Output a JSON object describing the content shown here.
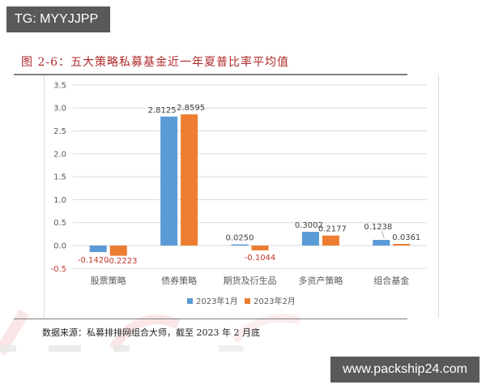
{
  "watermarks": {
    "top": "TG: MYYJJPP",
    "bottom": "www.packship24.com"
  },
  "figure": {
    "title": "图 2-6：五大策略私募基金近一年夏普比率平均值",
    "source": "数据来源：私募排排网组合大师，截至 2023 年 2 月底"
  },
  "colors": {
    "series1": "#5b9bd5",
    "series2": "#ed7d31",
    "title": "#b02a2a",
    "negative_label": "#c0392b",
    "gridline": "#d9d9d9"
  },
  "chart_data": {
    "type": "bar",
    "title": "五大策略私募基金近一年夏普比率平均值",
    "xlabel": "",
    "ylabel": "",
    "categories": [
      "股票策略",
      "债券策略",
      "期货及衍生品",
      "多资产策略",
      "组合基金"
    ],
    "series": [
      {
        "name": "2023年1月",
        "color": "#5b9bd5",
        "values": [
          -0.142,
          2.8125,
          0.025,
          0.3002,
          0.1238
        ],
        "labels": [
          "-0.1420",
          "2.8125",
          "0.0250",
          "0.3002",
          "0.1238"
        ]
      },
      {
        "name": "2023年2月",
        "color": "#ed7d31",
        "values": [
          -0.2223,
          2.8595,
          -0.1044,
          0.2177,
          0.0361
        ],
        "labels": [
          "-0.2223",
          "2.8595",
          "-0.1044",
          "0.2177",
          "0.0361"
        ]
      }
    ],
    "yticks": [
      "3.5",
      "3.0",
      "2.5",
      "2.0",
      "1.5",
      "1.0",
      "0.5",
      "0.0",
      "-0.5"
    ],
    "ylim": [
      -0.5,
      3.5
    ],
    "grid": true,
    "legend_position": "bottom"
  }
}
